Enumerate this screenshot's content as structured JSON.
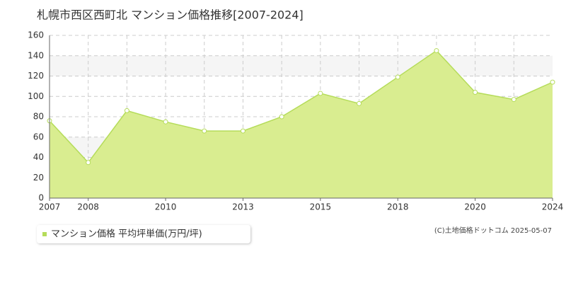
{
  "chart_data": {
    "type": "area",
    "title": "札幌市西区西町北 マンション価格推移[2007-2024]",
    "categories": [
      "2007",
      "2008",
      null,
      "2010",
      null,
      "2013",
      null,
      "2015",
      null,
      "2018",
      null,
      "2020",
      null,
      "2024"
    ],
    "series": [
      {
        "name": "マンション価格 平均坪単価(万円/坪)",
        "color": "#b5dc5a",
        "fill": "#d9ed90",
        "values": [
          76,
          35,
          86,
          75,
          66,
          66,
          80,
          103,
          93,
          119,
          145,
          104,
          97,
          114
        ]
      }
    ],
    "ylim": [
      0,
      160
    ],
    "yticks": [
      0,
      20,
      40,
      60,
      80,
      100,
      120,
      140,
      160
    ],
    "grid": true,
    "copyright": "(C)土地価格ドットコム 2025-05-07"
  }
}
